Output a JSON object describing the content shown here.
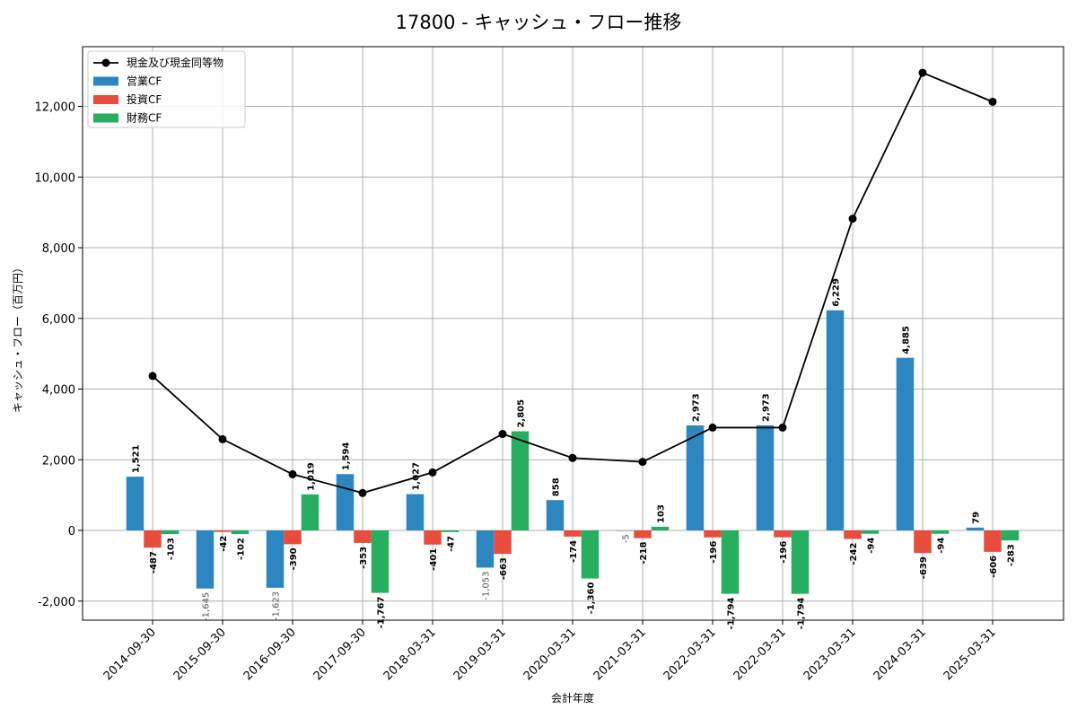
{
  "chart_data": {
    "type": "bar",
    "title": "17800 - キャッシュ・フロー推移",
    "xlabel": "会計年度",
    "ylabel": "キャッシュ・フロー（百万円）",
    "ylim": [
      -2500,
      13700
    ],
    "yticks": [
      -2000,
      0,
      2000,
      4000,
      6000,
      8000,
      10000,
      12000
    ],
    "ytick_labels": [
      "-2,000",
      "0",
      "2,000",
      "4,000",
      "6,000",
      "8,000",
      "10,000",
      "12,000"
    ],
    "grid": true,
    "legend_position": "top-left",
    "categories": [
      "2014-09-30",
      "2015-09-30",
      "2016-09-30",
      "2017-09-30",
      "2018-03-31",
      "2019-03-31",
      "2020-03-31",
      "2021-03-31",
      "2022-03-31",
      "2022-03-31",
      "2023-03-31",
      "2024-03-31",
      "2025-03-31"
    ],
    "series": [
      {
        "name": "営業CF",
        "kind": "bar",
        "color": "#2e86c1",
        "values": [
          1521,
          -1645,
          -1623,
          1594,
          1027,
          -1053,
          858,
          -5,
          2973,
          2973,
          6229,
          4885,
          79
        ],
        "labels": [
          "1,521",
          "-1,645",
          "-1,623",
          "1,594",
          "1,027",
          "-1,053",
          "858",
          "-5",
          "2,973",
          "2,973",
          "6,229",
          "4,885",
          "79"
        ]
      },
      {
        "name": "投資CF",
        "kind": "bar",
        "color": "#e74c3c",
        "values": [
          -487,
          -42,
          -390,
          -353,
          -401,
          -663,
          -174,
          -218,
          -196,
          -196,
          -242,
          -639,
          -606
        ],
        "labels": [
          "-487",
          "-42",
          "-390",
          "-353",
          "-401",
          "-663",
          "-174",
          "-218",
          "-196",
          "-196",
          "-242",
          "-639",
          "-606"
        ]
      },
      {
        "name": "財務CF",
        "kind": "bar",
        "color": "#27ae60",
        "values": [
          -103,
          -102,
          1019,
          -1767,
          -47,
          2805,
          -1360,
          103,
          -1794,
          -1794,
          -94,
          -94,
          -283
        ],
        "labels": [
          "-103",
          "-102",
          "1,019",
          "-1,767",
          "-47",
          "2,805",
          "-1,360",
          "103",
          "-1,794",
          "-1,794",
          "-94",
          "-94",
          "-283"
        ]
      },
      {
        "name": "現金及び現金同等物",
        "kind": "line",
        "color": "#000000",
        "values": [
          4370,
          2580,
          1590,
          1060,
          1640,
          2730,
          2050,
          1940,
          2910,
          2910,
          8820,
          12950,
          12130
        ]
      }
    ]
  }
}
